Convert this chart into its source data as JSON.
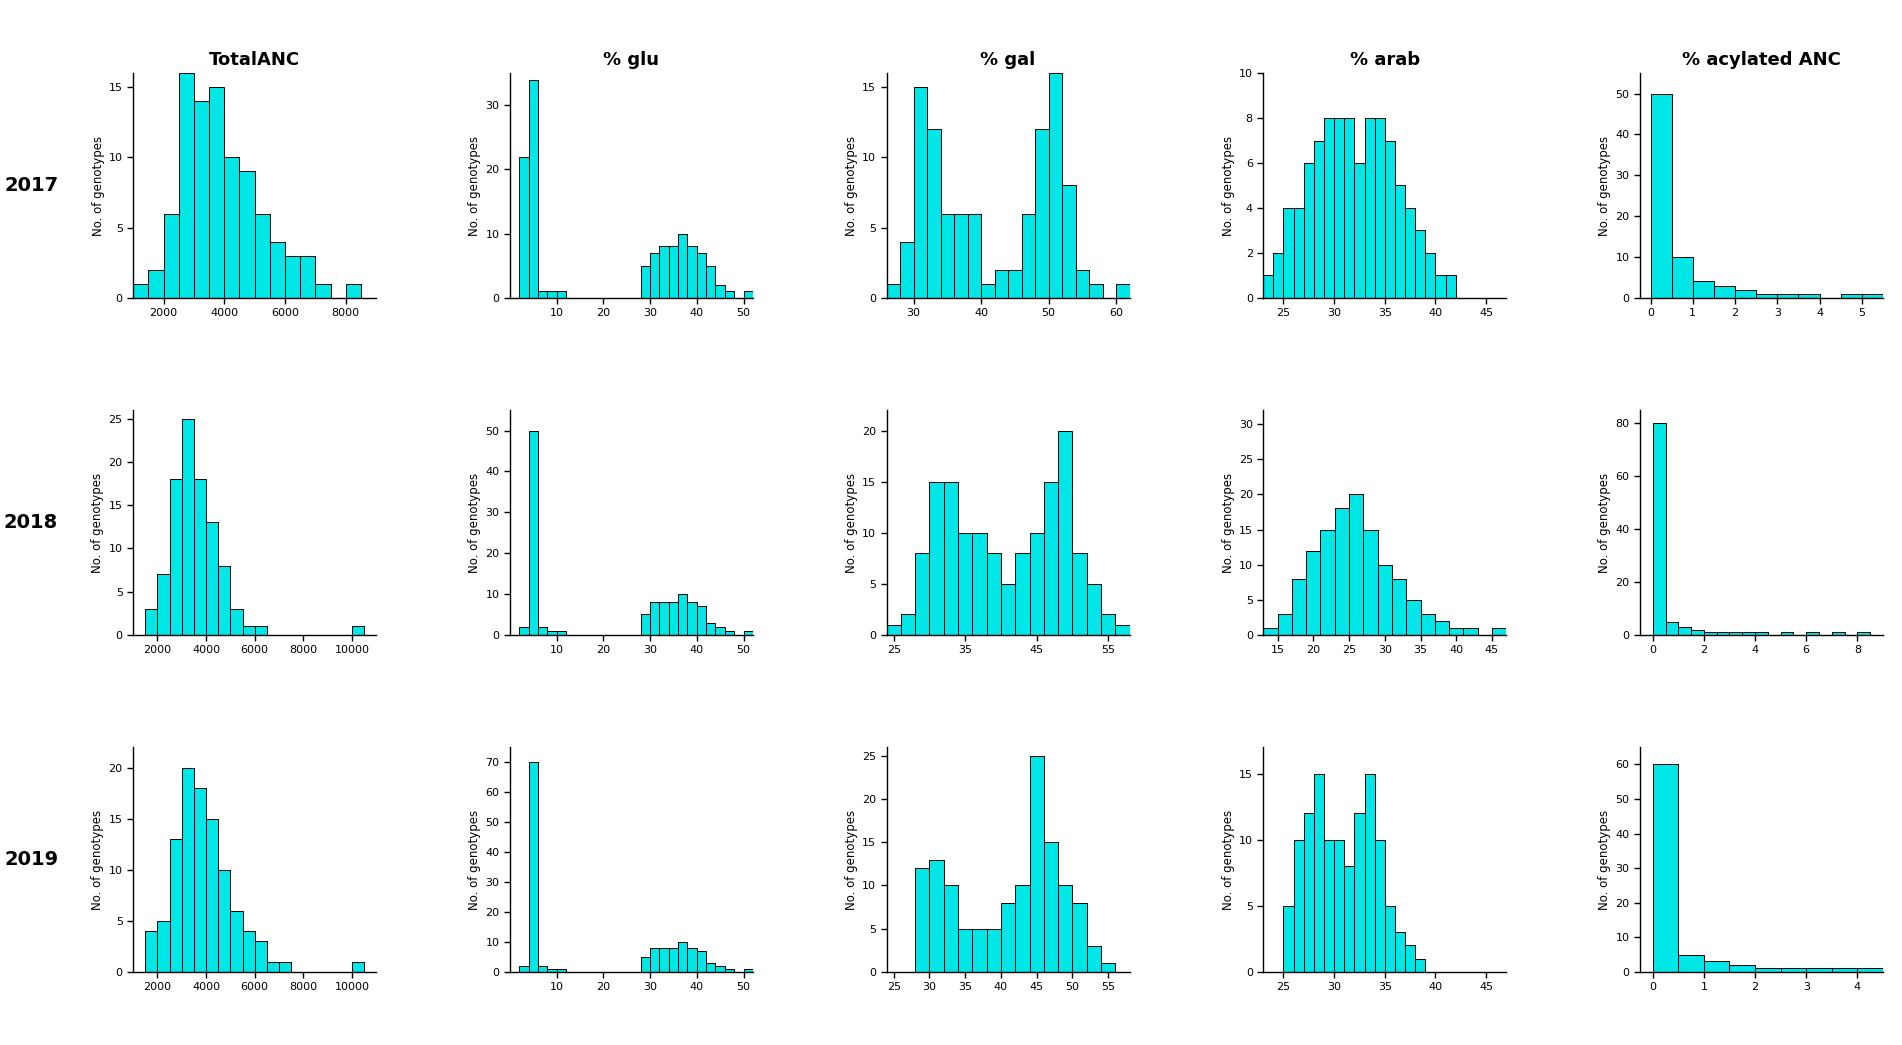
{
  "col_titles": [
    "TotalANC",
    "% glu",
    "% gal",
    "% arab",
    "% acylated ANC"
  ],
  "row_labels": [
    "2017",
    "2018",
    "2019"
  ],
  "bar_color": "#00E5E5",
  "bar_edge_color": "#000000",
  "ylabel": "No. of genotypes",
  "background_color": "#ffffff",
  "histograms": {
    "r0c0": {
      "bins": [
        1000,
        1500,
        2000,
        2500,
        3000,
        3500,
        4000,
        4500,
        5000,
        5500,
        6000,
        6500,
        7000,
        7500,
        8000,
        8500
      ],
      "counts": [
        1,
        2,
        6,
        16,
        14,
        15,
        10,
        9,
        6,
        4,
        3,
        3,
        1,
        0,
        1
      ],
      "xlim": [
        1000,
        9000
      ],
      "xticks": [
        2000,
        4000,
        6000,
        8000
      ],
      "ylim": [
        0,
        16
      ],
      "yticks": [
        0,
        5,
        10,
        15
      ]
    },
    "r0c1": {
      "bins": [
        2,
        4,
        6,
        8,
        10,
        12,
        14,
        16,
        18,
        20,
        22,
        24,
        26,
        28,
        30,
        32,
        34,
        36,
        38,
        40,
        42,
        44,
        46,
        48,
        50,
        52
      ],
      "counts": [
        22,
        34,
        1,
        1,
        1,
        0,
        0,
        0,
        0,
        0,
        0,
        0,
        0,
        5,
        7,
        8,
        8,
        10,
        8,
        7,
        5,
        2,
        1,
        0,
        1
      ],
      "xlim": [
        0,
        52
      ],
      "xticks": [
        10,
        20,
        30,
        40,
        50
      ],
      "ylim": [
        0,
        35
      ],
      "yticks": [
        0,
        10,
        20,
        30
      ]
    },
    "r0c2": {
      "bins": [
        26,
        28,
        30,
        32,
        34,
        36,
        38,
        40,
        42,
        44,
        46,
        48,
        50,
        52,
        54,
        56,
        58,
        60,
        62
      ],
      "counts": [
        1,
        4,
        15,
        12,
        6,
        6,
        6,
        1,
        2,
        2,
        6,
        12,
        16,
        8,
        2,
        1,
        0,
        1
      ],
      "xlim": [
        26,
        62
      ],
      "xticks": [
        30,
        40,
        50,
        60
      ],
      "ylim": [
        0,
        16
      ],
      "yticks": [
        0,
        5,
        10,
        15
      ]
    },
    "r0c3": {
      "bins": [
        23,
        24,
        25,
        26,
        27,
        28,
        29,
        30,
        31,
        32,
        33,
        34,
        35,
        36,
        37,
        38,
        39,
        40,
        41,
        42,
        43,
        44,
        45,
        46
      ],
      "counts": [
        1,
        2,
        4,
        4,
        6,
        7,
        8,
        8,
        8,
        6,
        8,
        8,
        7,
        5,
        4,
        3,
        2,
        1,
        1,
        0,
        0,
        0,
        0
      ],
      "xlim": [
        23,
        47
      ],
      "xticks": [
        25,
        30,
        35,
        40,
        45
      ],
      "ylim": [
        0,
        10
      ],
      "yticks": [
        0,
        2,
        4,
        6,
        8,
        10
      ]
    },
    "r0c4": {
      "bins": [
        0.0,
        0.5,
        1.0,
        1.5,
        2.0,
        2.5,
        3.0,
        3.5,
        4.0,
        4.5,
        5.0,
        5.5
      ],
      "counts": [
        50,
        10,
        4,
        3,
        2,
        1,
        1,
        1,
        0,
        1,
        1
      ],
      "xlim": [
        -0.25,
        5.5
      ],
      "xticks": [
        0,
        1,
        2,
        3,
        4,
        5
      ],
      "ylim": [
        0,
        55
      ],
      "yticks": [
        0,
        10,
        20,
        30,
        40,
        50
      ]
    },
    "r1c0": {
      "bins": [
        1000,
        1500,
        2000,
        2500,
        3000,
        3500,
        4000,
        4500,
        5000,
        5500,
        6000,
        6500,
        7000,
        7500,
        8000,
        8500,
        9000,
        9500,
        10000,
        10500
      ],
      "counts": [
        0,
        3,
        7,
        18,
        25,
        18,
        13,
        8,
        3,
        1,
        1,
        0,
        0,
        0,
        0,
        0,
        0,
        0,
        1
      ],
      "xlim": [
        1000,
        11000
      ],
      "xticks": [
        2000,
        4000,
        6000,
        8000,
        10000
      ],
      "ylim": [
        0,
        26
      ],
      "yticks": [
        0,
        5,
        10,
        15,
        20,
        25
      ]
    },
    "r1c1": {
      "bins": [
        2,
        4,
        6,
        8,
        10,
        12,
        14,
        16,
        18,
        20,
        22,
        24,
        26,
        28,
        30,
        32,
        34,
        36,
        38,
        40,
        42,
        44,
        46,
        48,
        50,
        52
      ],
      "counts": [
        2,
        50,
        2,
        1,
        1,
        0,
        0,
        0,
        0,
        0,
        0,
        0,
        0,
        5,
        8,
        8,
        8,
        10,
        8,
        7,
        3,
        2,
        1,
        0,
        1
      ],
      "xlim": [
        0,
        52
      ],
      "xticks": [
        10,
        20,
        30,
        40,
        50
      ],
      "ylim": [
        0,
        55
      ],
      "yticks": [
        0,
        10,
        20,
        30,
        40,
        50
      ]
    },
    "r1c2": {
      "bins": [
        24,
        26,
        28,
        30,
        32,
        34,
        36,
        38,
        40,
        42,
        44,
        46,
        48,
        50,
        52,
        54,
        56,
        58
      ],
      "counts": [
        1,
        2,
        8,
        15,
        15,
        10,
        10,
        8,
        5,
        8,
        10,
        15,
        20,
        8,
        5,
        2,
        1
      ],
      "xlim": [
        24,
        58
      ],
      "xticks": [
        25,
        35,
        45,
        55
      ],
      "ylim": [
        0,
        22
      ],
      "yticks": [
        0,
        5,
        10,
        15,
        20
      ]
    },
    "r1c3": {
      "bins": [
        13,
        15,
        17,
        19,
        21,
        23,
        25,
        27,
        29,
        31,
        33,
        35,
        37,
        39,
        41,
        43,
        45,
        47
      ],
      "counts": [
        1,
        3,
        8,
        12,
        15,
        18,
        20,
        15,
        10,
        8,
        5,
        3,
        2,
        1,
        1,
        0,
        1
      ],
      "xlim": [
        13,
        47
      ],
      "xticks": [
        15,
        20,
        25,
        30,
        35,
        40,
        45
      ],
      "ylim": [
        0,
        32
      ],
      "yticks": [
        0,
        5,
        10,
        15,
        20,
        25,
        30
      ]
    },
    "r1c4": {
      "bins": [
        0.0,
        0.5,
        1.0,
        1.5,
        2.0,
        2.5,
        3.0,
        3.5,
        4.0,
        4.5,
        5.0,
        5.5,
        6.0,
        6.5,
        7.0,
        7.5,
        8.0,
        8.5
      ],
      "counts": [
        80,
        5,
        3,
        2,
        1,
        1,
        1,
        1,
        1,
        0,
        1,
        0,
        1,
        0,
        1,
        0,
        1
      ],
      "xlim": [
        -0.5,
        9.0
      ],
      "xticks": [
        0,
        2,
        4,
        6,
        8
      ],
      "ylim": [
        0,
        85
      ],
      "yticks": [
        0,
        20,
        40,
        60,
        80
      ]
    },
    "r2c0": {
      "bins": [
        1000,
        1500,
        2000,
        2500,
        3000,
        3500,
        4000,
        4500,
        5000,
        5500,
        6000,
        6500,
        7000,
        7500,
        8000,
        8500,
        9000,
        9500,
        10000,
        10500
      ],
      "counts": [
        0,
        4,
        5,
        13,
        20,
        18,
        15,
        10,
        6,
        4,
        3,
        1,
        1,
        0,
        0,
        0,
        0,
        0,
        1
      ],
      "xlim": [
        1000,
        11000
      ],
      "xticks": [
        2000,
        4000,
        6000,
        8000,
        10000
      ],
      "ylim": [
        0,
        22
      ],
      "yticks": [
        0,
        5,
        10,
        15,
        20
      ]
    },
    "r2c1": {
      "bins": [
        2,
        4,
        6,
        8,
        10,
        12,
        14,
        16,
        18,
        20,
        22,
        24,
        26,
        28,
        30,
        32,
        34,
        36,
        38,
        40,
        42,
        44,
        46,
        48,
        50,
        52
      ],
      "counts": [
        2,
        70,
        2,
        1,
        1,
        0,
        0,
        0,
        0,
        0,
        0,
        0,
        0,
        5,
        8,
        8,
        8,
        10,
        8,
        7,
        3,
        2,
        1,
        0,
        1
      ],
      "xlim": [
        0,
        52
      ],
      "xticks": [
        10,
        20,
        30,
        40,
        50
      ],
      "ylim": [
        0,
        75
      ],
      "yticks": [
        0,
        10,
        20,
        30,
        40,
        50,
        60,
        70
      ]
    },
    "r2c2": {
      "bins": [
        24,
        26,
        28,
        30,
        32,
        34,
        36,
        38,
        40,
        42,
        44,
        46,
        48,
        50,
        52,
        54,
        56,
        58
      ],
      "counts": [
        0,
        0,
        12,
        13,
        10,
        5,
        5,
        5,
        8,
        10,
        25,
        15,
        10,
        8,
        3,
        1,
        0
      ],
      "xlim": [
        24,
        58
      ],
      "xticks": [
        25,
        30,
        35,
        40,
        45,
        50,
        55
      ],
      "ylim": [
        0,
        26
      ],
      "yticks": [
        0,
        5,
        10,
        15,
        20,
        25
      ]
    },
    "r2c3": {
      "bins": [
        23,
        24,
        25,
        26,
        27,
        28,
        29,
        30,
        31,
        32,
        33,
        34,
        35,
        36,
        37,
        38,
        39,
        40,
        41,
        42,
        43,
        44,
        45,
        46
      ],
      "counts": [
        0,
        0,
        5,
        10,
        12,
        15,
        10,
        10,
        8,
        12,
        15,
        10,
        5,
        3,
        2,
        1,
        0,
        0,
        0,
        0,
        0,
        0,
        0
      ],
      "xlim": [
        23,
        47
      ],
      "xticks": [
        25,
        30,
        35,
        40,
        45
      ],
      "ylim": [
        0,
        17
      ],
      "yticks": [
        0,
        5,
        10,
        15
      ]
    },
    "r2c4": {
      "bins": [
        0.0,
        0.5,
        1.0,
        1.5,
        2.0,
        2.5,
        3.0,
        3.5,
        4.0,
        4.5
      ],
      "counts": [
        60,
        5,
        3,
        2,
        1,
        1,
        1,
        1,
        1
      ],
      "xlim": [
        -0.25,
        4.5
      ],
      "xticks": [
        0,
        1,
        2,
        3,
        4
      ],
      "ylim": [
        0,
        65
      ],
      "yticks": [
        0,
        10,
        20,
        30,
        40,
        50,
        60
      ]
    }
  }
}
